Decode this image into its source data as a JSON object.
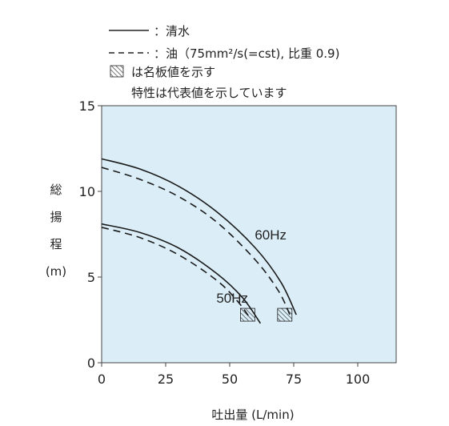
{
  "legend": {
    "solid_label": "：清水",
    "dashed_label": "：油（75mm²/s(=cst), 比重 0.9)",
    "hatch_label": "は名板値を示す",
    "note": "特性は代表値を示しています"
  },
  "chart_data": {
    "type": "line",
    "xlabel": "吐出量 (L/min)",
    "ylabel": "総揚程 (m)",
    "ylabel_chars": [
      "総",
      "揚",
      "程",
      "(m)"
    ],
    "xlim": [
      0,
      115
    ],
    "ylim": [
      0,
      15
    ],
    "xticks": [
      "0",
      "25",
      "50",
      "75",
      "100"
    ],
    "yticks": [
      "0",
      "5",
      "10",
      "15"
    ],
    "grid": false,
    "background_color": "#dbeef8",
    "series": [
      {
        "group": "60Hz",
        "style": "solid",
        "color": "#1a1a1a",
        "x": [
          0,
          15,
          30,
          45,
          60,
          70,
          76
        ],
        "y": [
          11.9,
          11.3,
          10.3,
          8.8,
          6.7,
          4.7,
          2.8
        ]
      },
      {
        "group": "60Hz",
        "style": "dashed",
        "color": "#1a1a1a",
        "x": [
          0,
          15,
          30,
          45,
          60,
          69,
          73.5
        ],
        "y": [
          11.4,
          10.7,
          9.7,
          8.2,
          6.0,
          4.2,
          2.8
        ]
      },
      {
        "group": "50Hz",
        "style": "solid",
        "color": "#1a1a1a",
        "x": [
          0,
          15,
          30,
          45,
          55,
          62
        ],
        "y": [
          8.1,
          7.6,
          6.7,
          5.2,
          3.8,
          2.3
        ]
      },
      {
        "group": "50Hz",
        "style": "dashed",
        "color": "#1a1a1a",
        "x": [
          0,
          15,
          30,
          45,
          53,
          57.5
        ],
        "y": [
          7.9,
          7.3,
          6.3,
          4.8,
          3.6,
          2.7
        ]
      }
    ],
    "annotations": [
      {
        "text": "60Hz",
        "x": 66,
        "y": 7.2
      },
      {
        "text": "50Hz",
        "x": 51,
        "y": 3.5
      }
    ],
    "rated_points": [
      {
        "x": 57,
        "y": 2.8
      },
      {
        "x": 71.5,
        "y": 2.8
      }
    ]
  }
}
